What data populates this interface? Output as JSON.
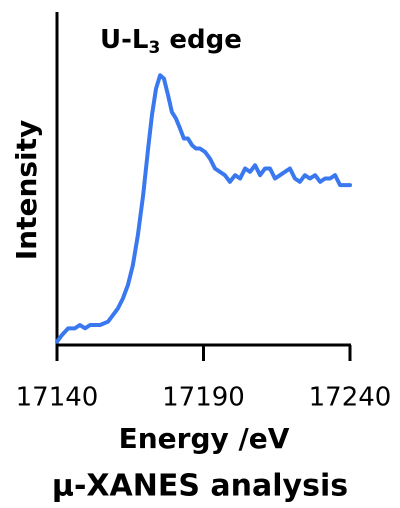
{
  "chart_data": {
    "type": "line",
    "annotation": [
      "U-L",
      "3",
      " edge"
    ],
    "annotation_color": "#e0341c",
    "xlabel": "Energy /eV",
    "ylabel": "Intensity",
    "title": "μ-XANES analysis",
    "xlim": [
      17140,
      17240
    ],
    "xticks": [
      17140,
      17190,
      17240
    ],
    "ylim": [
      0,
      1
    ],
    "x": [
      17140,
      17141.7,
      17143.8,
      17146.1,
      17147.8,
      17149.6,
      17151.3,
      17154.7,
      17157.4,
      17159.1,
      17160.8,
      17162.5,
      17164.2,
      17165.9,
      17167.6,
      17169.4,
      17171.1,
      17172.4,
      17173.8,
      17175.2,
      17176.5,
      17177.9,
      17179.2,
      17180.6,
      17182.0,
      17183.3,
      17184.7,
      17186.1,
      17187.4,
      17188.8,
      17190.5,
      17192.2,
      17193.9,
      17195.6,
      17197.3,
      17199.0,
      17200.8,
      17202.5,
      17204.2,
      17205.9,
      17207.6,
      17209.3,
      17211.0,
      17212.7,
      17214.4,
      17216.1,
      17217.8,
      17219.5,
      17221.2,
      17222.9,
      17224.6,
      17226.3,
      17228.1,
      17229.8,
      17231.5,
      17233.2,
      17234.9,
      17236.6,
      17238.3,
      17240
    ],
    "series": [
      {
        "color": "#3a78f0",
        "values": [
          0.01,
          0.03,
          0.05,
          0.05,
          0.06,
          0.05,
          0.06,
          0.06,
          0.07,
          0.09,
          0.11,
          0.14,
          0.18,
          0.24,
          0.33,
          0.45,
          0.59,
          0.69,
          0.77,
          0.81,
          0.8,
          0.75,
          0.7,
          0.68,
          0.65,
          0.62,
          0.62,
          0.6,
          0.59,
          0.59,
          0.58,
          0.56,
          0.53,
          0.52,
          0.51,
          0.49,
          0.51,
          0.5,
          0.53,
          0.52,
          0.54,
          0.51,
          0.53,
          0.53,
          0.5,
          0.51,
          0.52,
          0.53,
          0.5,
          0.49,
          0.51,
          0.5,
          0.51,
          0.49,
          0.5,
          0.5,
          0.51,
          0.48,
          0.48,
          0.48
        ]
      }
    ]
  }
}
